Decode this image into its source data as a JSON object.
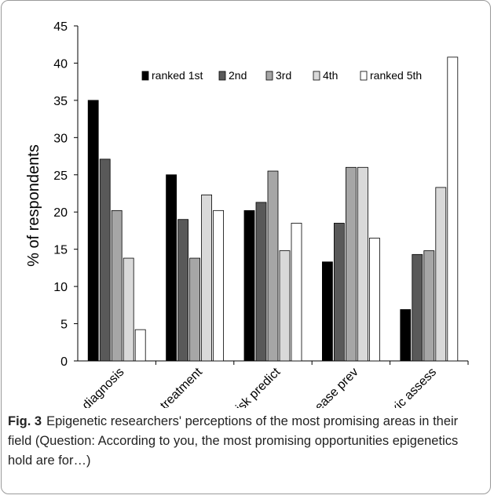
{
  "figure": {
    "label": "Fig. 3",
    "caption": "Epigenetic researchers' perceptions of the most promising areas in their field (Question: According to you, the most promising opportunities epigenetics hold are for…)"
  },
  "chart_data": {
    "type": "bar",
    "title": "",
    "xlabel": "",
    "ylabel": "% of respondents",
    "ylim": [
      0,
      45
    ],
    "yticks": [
      0,
      5,
      10,
      15,
      20,
      25,
      30,
      35,
      40,
      45
    ],
    "grid": false,
    "legend_position": "top",
    "categories": [
      "diagnosis",
      "treatment",
      "risk predict",
      "disease prev",
      "toxic assess"
    ],
    "series": [
      {
        "name": "ranked 1st",
        "color": "#000000",
        "values": [
          35.0,
          25.0,
          20.2,
          13.3,
          6.9
        ]
      },
      {
        "name": "2nd",
        "color": "#595959",
        "values": [
          27.1,
          19.0,
          21.3,
          18.5,
          14.3
        ]
      },
      {
        "name": "3rd",
        "color": "#a6a6a6",
        "values": [
          20.2,
          13.8,
          25.5,
          26.0,
          14.8
        ]
      },
      {
        "name": "4th",
        "color": "#d9d9d9",
        "values": [
          13.8,
          22.3,
          14.8,
          26.0,
          23.3
        ]
      },
      {
        "name": "ranked 5th",
        "color": "#ffffff",
        "values": [
          4.2,
          20.2,
          18.5,
          16.5,
          40.8
        ]
      }
    ]
  }
}
